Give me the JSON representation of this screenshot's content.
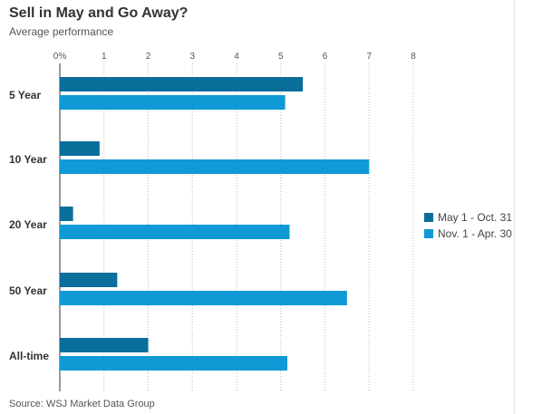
{
  "chart_data": {
    "type": "bar",
    "orientation": "horizontal",
    "title": "Sell in May and Go Away?",
    "subtitle": "Average performance",
    "source": "Source: WSJ Market Data Group",
    "categories": [
      "5 Year",
      "10 Year",
      "20 Year",
      "50 Year",
      "All-time"
    ],
    "x_ticks": [
      "0%",
      "1",
      "2",
      "3",
      "4",
      "5",
      "6",
      "7",
      "8"
    ],
    "xlim": [
      0,
      8
    ],
    "grid": true,
    "legend_position": "right",
    "series": [
      {
        "name": "May 1 - Oct. 31",
        "color": "#0a6e9a",
        "values": [
          5.5,
          0.9,
          0.3,
          1.3,
          2.0
        ]
      },
      {
        "name": "Nov. 1 - Apr. 30",
        "color": "#0f9ad6",
        "values": [
          5.1,
          7.0,
          5.2,
          6.5,
          5.15
        ]
      }
    ]
  }
}
